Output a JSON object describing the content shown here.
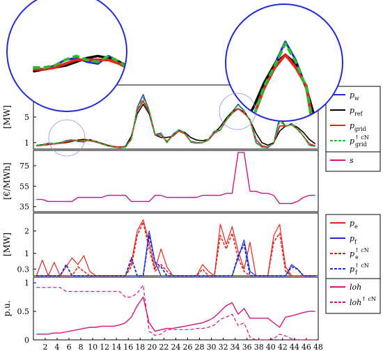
{
  "chart_data": [
    {
      "type": "line",
      "ylabel": "[MW]",
      "yticks": [
        "1",
        "5"
      ],
      "yvals": [
        1,
        5
      ],
      "ylim": [
        0,
        10
      ],
      "legend": [
        {
          "name": "p",
          "sub": "w",
          "sup": "",
          "color": "#1f2bd6",
          "dash": false
        },
        {
          "name": "p",
          "sub": "ref",
          "sup": "",
          "color": "#000000",
          "dash": false
        },
        {
          "name": "p",
          "sub": "grid",
          "sup": "",
          "color": "#e8231c",
          "dash": false
        },
        {
          "name": "p",
          "sub": "grid",
          "sup": "↑ c^fee_N",
          "color": "#22c02a",
          "dash": true
        }
      ],
      "series": {
        "p_w": [
          0.6,
          0.7,
          0.9,
          0.8,
          1.0,
          1.3,
          1.4,
          1.2,
          1.1,
          1.5,
          1.2,
          0.8,
          0.5,
          0.3,
          0.2,
          0.3,
          1.5,
          6.5,
          8.5,
          6.0,
          2.3,
          2.5,
          1.0,
          2.3,
          3.0,
          2.6,
          1.1,
          0.9,
          1.0,
          1.5,
          2.8,
          3.0,
          4.5,
          5.8,
          7.0,
          6.0,
          4.5,
          1.0,
          0.3,
          0.2,
          1.0,
          5.0,
          3.5,
          4.0,
          3.2,
          2.0,
          0.6,
          0.4
        ],
        "p_ref": [
          0.5,
          0.6,
          0.7,
          0.8,
          0.9,
          1.0,
          1.2,
          1.4,
          1.5,
          1.4,
          1.2,
          0.9,
          0.6,
          0.4,
          0.3,
          0.4,
          2.0,
          5.5,
          7.0,
          5.5,
          2.2,
          1.8,
          1.8,
          2.0,
          2.8,
          2.6,
          1.8,
          1.4,
          1.3,
          1.5,
          2.5,
          3.5,
          4.8,
          5.8,
          6.3,
          5.8,
          4.5,
          2.5,
          1.0,
          0.6,
          1.0,
          2.8,
          3.6,
          3.8,
          3.4,
          2.6,
          1.5,
          0.8
        ],
        "p_grid": [
          0.5,
          0.6,
          0.8,
          0.8,
          0.9,
          1.1,
          1.3,
          1.3,
          1.3,
          1.3,
          1.1,
          0.8,
          0.5,
          0.4,
          0.3,
          0.3,
          1.6,
          6.0,
          7.5,
          5.8,
          2.2,
          2.2,
          1.2,
          2.1,
          2.8,
          2.4,
          1.2,
          1.0,
          1.0,
          1.4,
          2.5,
          3.0,
          4.5,
          5.6,
          6.3,
          5.6,
          4.6,
          1.5,
          0.5,
          0.3,
          0.9,
          3.6,
          3.6,
          3.8,
          3.1,
          2.0,
          0.8,
          0.5
        ],
        "p_grid_fee": [
          0.6,
          0.7,
          0.9,
          0.9,
          1.0,
          1.3,
          1.5,
          1.3,
          1.2,
          1.5,
          1.2,
          0.8,
          0.5,
          0.3,
          0.2,
          0.3,
          1.6,
          6.3,
          8.0,
          6.0,
          2.3,
          2.4,
          1.0,
          2.2,
          3.0,
          2.6,
          1.2,
          1.0,
          1.0,
          1.5,
          2.7,
          3.0,
          4.6,
          5.7,
          6.9,
          5.9,
          4.5,
          1.2,
          0.3,
          0.2,
          1.0,
          4.4,
          3.5,
          3.9,
          3.2,
          2.0,
          0.6,
          0.4
        ]
      }
    },
    {
      "type": "line",
      "ylabel": "[€/MWh]",
      "yticks": [
        "35",
        "55",
        "75"
      ],
      "yvals": [
        35,
        55,
        75
      ],
      "ylim": [
        30,
        90
      ],
      "legend": [
        {
          "name": "s",
          "sub": "",
          "sup": "",
          "color": "#d6137e",
          "dash": false
        }
      ],
      "series": {
        "s": [
          42,
          42,
          40,
          40,
          40,
          40,
          40,
          44,
          44,
          44,
          44,
          44,
          46,
          46,
          46,
          46,
          40,
          40,
          40,
          40,
          46,
          46,
          44,
          44,
          44,
          44,
          44,
          44,
          46,
          46,
          46,
          46,
          48,
          48,
          88,
          88,
          50,
          50,
          48,
          48,
          46,
          38,
          38,
          38,
          40,
          44,
          46,
          46
        ]
      }
    },
    {
      "type": "line",
      "ylabel": "[MW]",
      "yticks": [
        "0.3",
        "1",
        "2"
      ],
      "yvals": [
        0.3,
        1,
        2
      ],
      "ylim": [
        0,
        2.8
      ],
      "legend": [
        {
          "name": "p",
          "sub": "e",
          "sup": "",
          "color": "#e8231c",
          "dash": false
        },
        {
          "name": "p",
          "sub": "f",
          "sup": "",
          "color": "#1f2bd6",
          "dash": false
        },
        {
          "name": "p",
          "sub": "e",
          "sup": "↑ c^fee_N",
          "color": "#e8231c",
          "dash": true
        },
        {
          "name": "p",
          "sub": "f",
          "sup": "↑ c^fee_N",
          "color": "#1f2bd6",
          "dash": true
        }
      ],
      "series": {
        "p_e": [
          0,
          0.7,
          0,
          0.6,
          0,
          0.4,
          0.8,
          0.5,
          0.9,
          0.2,
          0,
          0,
          0,
          0,
          0,
          0,
          0.6,
          2.0,
          2.5,
          1.5,
          0.3,
          1.2,
          0.4,
          0,
          0,
          0,
          0,
          0,
          0.5,
          0.2,
          0,
          2.3,
          1.4,
          2.2,
          1.1,
          0.3,
          1.5,
          0,
          0,
          0,
          1.8,
          2.3,
          0.4,
          0,
          0,
          0,
          0,
          0
        ],
        "p_f": [
          0,
          0,
          0,
          0,
          0,
          0,
          0,
          0,
          0,
          0,
          0,
          0,
          0,
          0,
          0,
          0,
          0,
          0,
          0,
          2.0,
          0.6,
          0,
          0,
          0,
          0,
          0,
          0,
          0,
          0,
          0,
          0,
          0,
          0,
          0,
          0.8,
          1.6,
          0.2,
          0,
          0,
          0,
          0,
          0,
          0,
          0.5,
          0.3,
          0,
          0,
          0
        ],
        "p_e_fee": [
          0,
          0,
          0,
          0,
          0,
          0,
          0,
          0.4,
          0.2,
          0,
          0,
          0,
          0,
          0,
          0,
          0,
          0.4,
          1.8,
          2.4,
          1.2,
          0.2,
          0.5,
          0.2,
          0,
          0,
          0,
          0,
          0,
          0.3,
          0,
          0,
          1.8,
          1.2,
          1.9,
          0.8,
          0.2,
          0,
          0,
          0,
          0,
          1.5,
          1.9,
          0.2,
          0,
          0,
          0,
          0,
          0
        ],
        "p_f_fee": [
          0,
          0,
          0,
          0,
          0,
          0.5,
          0,
          0,
          0,
          0,
          0,
          0,
          0,
          0,
          0,
          0,
          0.8,
          0,
          0,
          1.8,
          0.6,
          0.4,
          0,
          0,
          0,
          0,
          0,
          0,
          0,
          0,
          0,
          0,
          0,
          0,
          0.9,
          1.4,
          0,
          0,
          0,
          0,
          0,
          0,
          0,
          0.4,
          0.3,
          0,
          0,
          0
        ]
      }
    },
    {
      "type": "line",
      "ylabel": "p.u.",
      "yticks": [
        "0",
        "0.5",
        "1"
      ],
      "yvals": [
        0,
        0.5,
        1
      ],
      "ylim": [
        0,
        1.1
      ],
      "xticks": [
        "2",
        "4",
        "6",
        "8",
        "10",
        "12",
        "14",
        "16",
        "18",
        "20",
        "22",
        "24",
        "26",
        "28",
        "30",
        "32",
        "34",
        "36",
        "38",
        "40",
        "42",
        "44",
        "46",
        "48"
      ],
      "legend": [
        {
          "name": "loh",
          "sub": "",
          "sup": "",
          "color": "#d6137e",
          "dash": false
        },
        {
          "name": "loh",
          "sub": "",
          "sup": "↑ c^fee_N",
          "color": "#d6137e",
          "dash": true
        }
      ],
      "series": {
        "loh": [
          0.1,
          0.1,
          0.1,
          0.12,
          0.12,
          0.14,
          0.16,
          0.18,
          0.2,
          0.22,
          0.22,
          0.24,
          0.24,
          0.24,
          0.26,
          0.3,
          0.4,
          0.6,
          0.75,
          0.3,
          0.15,
          0.18,
          0.2,
          0.2,
          0.22,
          0.24,
          0.26,
          0.28,
          0.3,
          0.34,
          0.4,
          0.5,
          0.6,
          0.65,
          0.45,
          0.55,
          0.38,
          0.38,
          0.38,
          0.38,
          0.3,
          0.22,
          0.4,
          0.42,
          0.45,
          0.48,
          0.5,
          0.5
        ],
        "loh_fee": [
          0.92,
          0.92,
          0.92,
          0.92,
          0.92,
          0.85,
          0.85,
          0.85,
          0.85,
          0.85,
          0.85,
          0.85,
          0.85,
          0.85,
          0.85,
          0.75,
          0.75,
          0.82,
          0.96,
          0.15,
          0.08,
          0.1,
          0.18,
          0.18,
          0.18,
          0.18,
          0.18,
          0.2,
          0.2,
          0.22,
          0.26,
          0.36,
          0.4,
          0.45,
          0.25,
          0.3,
          0.05,
          0,
          0,
          0,
          0.02,
          0.1,
          0.07,
          0.02,
          0,
          0,
          0,
          0
        ]
      }
    }
  ]
}
